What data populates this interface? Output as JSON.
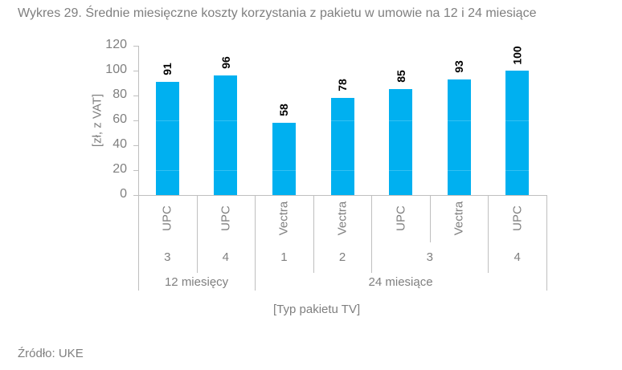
{
  "title": "Wykres 29. Średnie miesięczne koszty korzystania z pakietu w umowie na 12 i 24 miesiące",
  "source": "Źródło: UKE",
  "colors": {
    "bar": "#00b0f0",
    "axis": "#bfbfbf",
    "text": "#7f7f7f",
    "label": "#000000"
  },
  "chart_data": {
    "type": "bar",
    "title": "Wykres 29. Średnie miesięczne koszty korzystania z pakietu w umowie na 12 i 24 miesiące",
    "xlabel": "[Typ pakietu TV]",
    "ylabel": "[zł, z VAT]",
    "ylim": [
      0,
      120
    ],
    "yticks": [
      "0",
      "20",
      "40",
      "60",
      "80",
      "100",
      "120"
    ],
    "grid": false,
    "legend": null,
    "categories": [
      "UPC 3 (12 miesięcy)",
      "UPC 4 (12 miesięcy)",
      "Vectra 1 (24 miesiące)",
      "Vectra 2 (24 miesiące)",
      "UPC 3 (24 miesiące)",
      "Vectra 3 (24 miesiące)",
      "UPC 4 (24 miesiące)"
    ],
    "operators": [
      "UPC",
      "UPC",
      "Vectra",
      "Vectra",
      "UPC",
      "Vectra",
      "UPC"
    ],
    "package_levels": [
      {
        "label": "3",
        "span": 1
      },
      {
        "label": "4",
        "span": 1
      },
      {
        "label": "1",
        "span": 1
      },
      {
        "label": "2",
        "span": 1
      },
      {
        "label": "3",
        "span": 2
      },
      {
        "label": "4",
        "span": 1
      }
    ],
    "contract_groups": [
      {
        "label": "12 miesięcy",
        "span": 2
      },
      {
        "label": "24 miesiące",
        "span": 5
      }
    ],
    "values": [
      91,
      96,
      58,
      78,
      85,
      93,
      100
    ],
    "value_labels": [
      "91",
      "96",
      "58",
      "78",
      "85",
      "93",
      "100"
    ]
  }
}
